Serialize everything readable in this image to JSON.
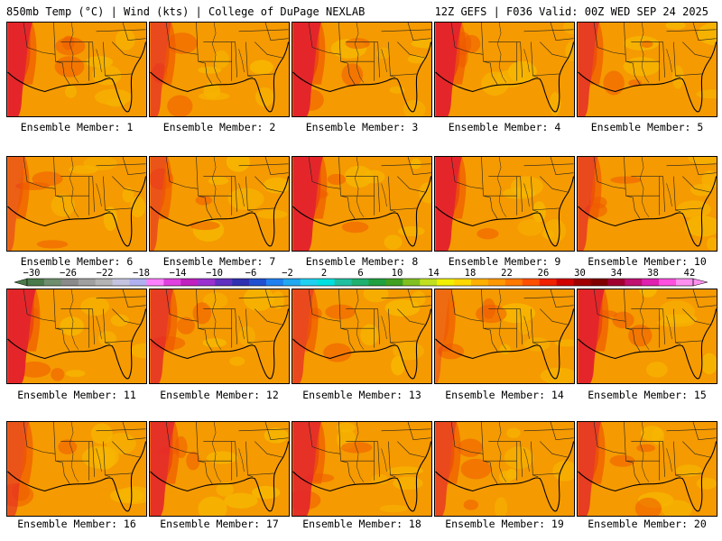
{
  "header": {
    "left_title": "850mb Temp (°C) | Wind (kts) | College of DuPage NEXLAB",
    "right_title": "12Z GEFS | F036 Valid: 00Z WED SEP 24 2025"
  },
  "panels": [
    {
      "caption": "Ensemble Member: 1"
    },
    {
      "caption": "Ensemble Member: 2"
    },
    {
      "caption": "Ensemble Member: 3"
    },
    {
      "caption": "Ensemble Member: 4"
    },
    {
      "caption": "Ensemble Member: 5"
    },
    {
      "caption": "Ensemble Member: 6"
    },
    {
      "caption": "Ensemble Member: 7"
    },
    {
      "caption": "Ensemble Member: 8"
    },
    {
      "caption": "Ensemble Member: 9"
    },
    {
      "caption": "Ensemble Member: 10"
    },
    {
      "caption": "Ensemble Member: 11"
    },
    {
      "caption": "Ensemble Member: 12"
    },
    {
      "caption": "Ensemble Member: 13"
    },
    {
      "caption": "Ensemble Member: 14"
    },
    {
      "caption": "Ensemble Member: 15"
    },
    {
      "caption": "Ensemble Member: 16"
    },
    {
      "caption": "Ensemble Member: 17"
    },
    {
      "caption": "Ensemble Member: 18"
    },
    {
      "caption": "Ensemble Member: 19"
    },
    {
      "caption": "Ensemble Member: 20"
    }
  ],
  "colorbar": {
    "tick_labels": [
      "−30",
      "−26",
      "−22",
      "−18",
      "−14",
      "−10",
      "−6",
      "−2",
      "2",
      "6",
      "10",
      "14",
      "18",
      "22",
      "26",
      "30",
      "34",
      "38",
      "42"
    ],
    "colors": [
      "#4a7a4a",
      "#6e8e6e",
      "#8a8a8a",
      "#a0a0a0",
      "#b4b4b4",
      "#c4c4e0",
      "#b0b0f0",
      "#ff80ff",
      "#e040e0",
      "#c020c0",
      "#9a30d0",
      "#6030c0",
      "#3030b0",
      "#2050d0",
      "#2080f0",
      "#20a8f0",
      "#20d0f0",
      "#00e0e0",
      "#20c0a0",
      "#20b070",
      "#20a040",
      "#40a020",
      "#80c020",
      "#c0e020",
      "#f0f000",
      "#ffd800",
      "#ffb000",
      "#ff9800",
      "#ff7800",
      "#ff5000",
      "#f02000",
      "#d00000",
      "#a00000",
      "#800000",
      "#a00030",
      "#c01070",
      "#e020b0",
      "#ff50e0",
      "#ff90f0"
    ]
  },
  "map_colors": {
    "base": "#f59a00",
    "warm": "#ef5a00",
    "hot": "#e4262a",
    "cool": "#f6b500",
    "lines": "#222222"
  }
}
